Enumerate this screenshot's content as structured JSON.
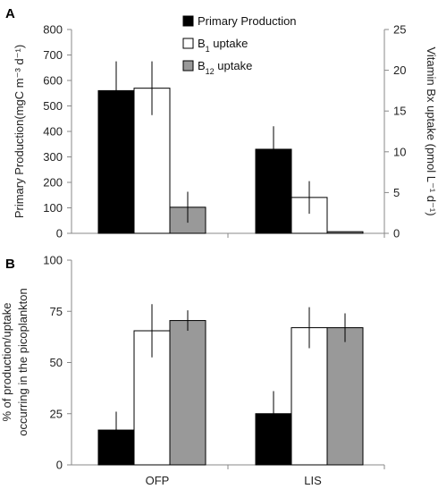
{
  "chart_data": [
    {
      "panel_label": "A",
      "type": "bar",
      "categories": [
        "OFP",
        "LIS"
      ],
      "left_axis": {
        "ylabel": "Primary Production(mgC m⁻³ d⁻¹)",
        "ylim": [
          0,
          800
        ],
        "ticks": [
          "0",
          "100",
          "200",
          "300",
          "400",
          "500",
          "600",
          "700",
          "800"
        ]
      },
      "right_axis": {
        "ylabel": "Vitamin Bx uptake (pmol L⁻¹ d⁻¹)",
        "ylim": [
          0,
          25
        ],
        "ticks": [
          "0",
          "5",
          "10",
          "15",
          "20",
          "25"
        ]
      },
      "series": [
        {
          "name": "Primary Production",
          "axis": "left",
          "color": "#000000",
          "values": [
            560,
            330
          ],
          "errors": [
            115,
            90
          ]
        },
        {
          "name_prefix": "B",
          "name_sub": "1",
          "name_suffix": " uptake",
          "axis": "right",
          "color": "#ffffff",
          "values": [
            17.8,
            4.4
          ],
          "errors": [
            3.3,
            2.0
          ]
        },
        {
          "name_prefix": "B",
          "name_sub": "12",
          "name_suffix": " uptake",
          "axis": "right",
          "color": "#999999",
          "values": [
            3.2,
            0.2
          ],
          "errors": [
            1.9,
            0
          ]
        }
      ],
      "legend_position": "top-center"
    },
    {
      "panel_label": "B",
      "type": "bar",
      "categories": [
        "OFP",
        "LIS"
      ],
      "ylabel_lines": [
        "% of production/uptake",
        "occurring in the picoplankton"
      ],
      "ylim": [
        0,
        100
      ],
      "ticks": [
        "0",
        "25",
        "50",
        "75",
        "100"
      ],
      "series": [
        {
          "color": "#000000",
          "values": [
            17,
            25
          ],
          "errors": [
            9,
            11
          ]
        },
        {
          "color": "#ffffff",
          "values": [
            65.5,
            67
          ],
          "errors": [
            13,
            10
          ]
        },
        {
          "color": "#999999",
          "values": [
            70.5,
            67
          ],
          "errors": [
            5,
            7
          ]
        }
      ]
    }
  ]
}
